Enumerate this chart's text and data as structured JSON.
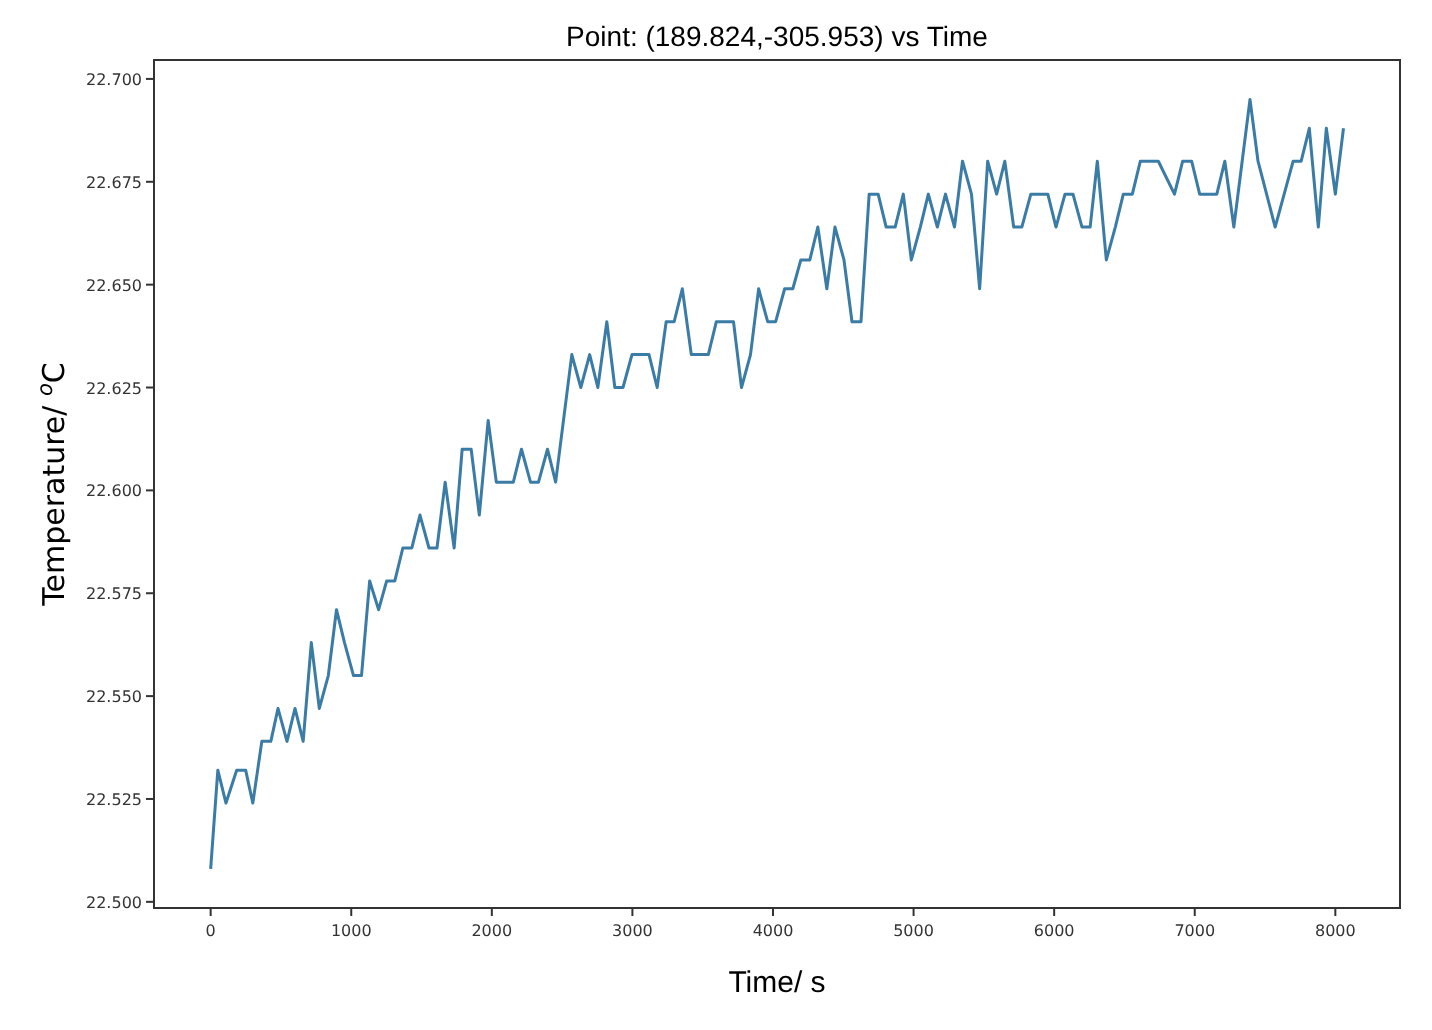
{
  "chart_data": {
    "type": "line",
    "title": "Point: (189.824,-305.953) vs Time",
    "xlabel": "Time/ s",
    "ylabel": "Temperature/ $^{o}$C",
    "x": [
      0,
      51,
      109,
      185,
      249,
      300,
      364,
      428,
      479,
      543,
      600,
      658,
      716,
      773,
      837,
      895,
      952,
      1016,
      1073,
      1131,
      1195,
      1252,
      1310,
      1367,
      1431,
      1489,
      1553,
      1610,
      1668,
      1732,
      1789,
      1853,
      1911,
      1974,
      2032,
      2096,
      2153,
      2211,
      2275,
      2332,
      2396,
      2454,
      2569,
      2633,
      2696,
      2754,
      2818,
      2875,
      2933,
      2997,
      3054,
      3118,
      3176,
      3240,
      3297,
      3355,
      3419,
      3476,
      3540,
      3597,
      3655,
      3719,
      3776,
      3840,
      3898,
      3962,
      4019,
      4083,
      4141,
      4198,
      4262,
      4319,
      4383,
      4441,
      4505,
      4562,
      4626,
      4684,
      4748,
      4805,
      4869,
      4927,
      4984,
      5048,
      5105,
      5169,
      5227,
      5291,
      5348,
      5412,
      5470,
      5527,
      5591,
      5649,
      5712,
      5770,
      5834,
      5891,
      5955,
      6013,
      6077,
      6134,
      6198,
      6256,
      6307,
      6371,
      6435,
      6492,
      6556,
      6613,
      6677,
      6741,
      6856,
      6914,
      6978,
      7035,
      7099,
      7157,
      7214,
      7278,
      7393,
      7450,
      7572,
      7700,
      7757,
      7815,
      7879,
      7936,
      8000,
      8058
    ],
    "series": [
      {
        "color": "#3a7ca5",
        "values": [
          22.508,
          22.532,
          22.524,
          22.532,
          22.532,
          22.524,
          22.539,
          22.539,
          22.547,
          22.539,
          22.547,
          22.539,
          22.563,
          22.547,
          22.555,
          22.571,
          22.563,
          22.555,
          22.555,
          22.578,
          22.571,
          22.578,
          22.578,
          22.586,
          22.586,
          22.594,
          22.586,
          22.586,
          22.602,
          22.586,
          22.61,
          22.61,
          22.594,
          22.617,
          22.602,
          22.602,
          22.602,
          22.61,
          22.602,
          22.602,
          22.61,
          22.602,
          22.633,
          22.625,
          22.633,
          22.625,
          22.641,
          22.625,
          22.625,
          22.633,
          22.633,
          22.633,
          22.625,
          22.641,
          22.641,
          22.649,
          22.633,
          22.633,
          22.633,
          22.641,
          22.641,
          22.641,
          22.625,
          22.633,
          22.649,
          22.641,
          22.641,
          22.649,
          22.649,
          22.656,
          22.656,
          22.664,
          22.649,
          22.664,
          22.656,
          22.641,
          22.641,
          22.672,
          22.672,
          22.664,
          22.664,
          22.672,
          22.656,
          22.664,
          22.672,
          22.664,
          22.672,
          22.664,
          22.68,
          22.672,
          22.649,
          22.68,
          22.672,
          22.68,
          22.664,
          22.664,
          22.672,
          22.672,
          22.672,
          22.664,
          22.672,
          22.672,
          22.664,
          22.664,
          22.68,
          22.656,
          22.664,
          22.672,
          22.672,
          22.68,
          22.68,
          22.68,
          22.672,
          22.68,
          22.68,
          22.672,
          22.672,
          22.672,
          22.68,
          22.664,
          22.695,
          22.68,
          22.664,
          22.68,
          22.68,
          22.688,
          22.664,
          22.688,
          22.672,
          22.688
        ]
      }
    ],
    "xlim": [
      -403,
      8460
    ],
    "ylim": [
      22.4985,
      22.7046
    ],
    "xticks": [
      0,
      1000,
      2000,
      3000,
      4000,
      5000,
      6000,
      7000,
      8000
    ],
    "yticks": [
      {
        "value": 22.5,
        "label": "22.500"
      },
      {
        "value": 22.525,
        "label": "22.525"
      },
      {
        "value": 22.55,
        "label": "22.550"
      },
      {
        "value": 22.575,
        "label": "22.575"
      },
      {
        "value": 22.6,
        "label": "22.600"
      },
      {
        "value": 22.625,
        "label": "22.625"
      },
      {
        "value": 22.65,
        "label": "22.650"
      },
      {
        "value": 22.675,
        "label": "22.675"
      },
      {
        "value": 22.7,
        "label": "22.700"
      }
    ],
    "grid": false,
    "line_style": "solid",
    "marker": "none"
  }
}
